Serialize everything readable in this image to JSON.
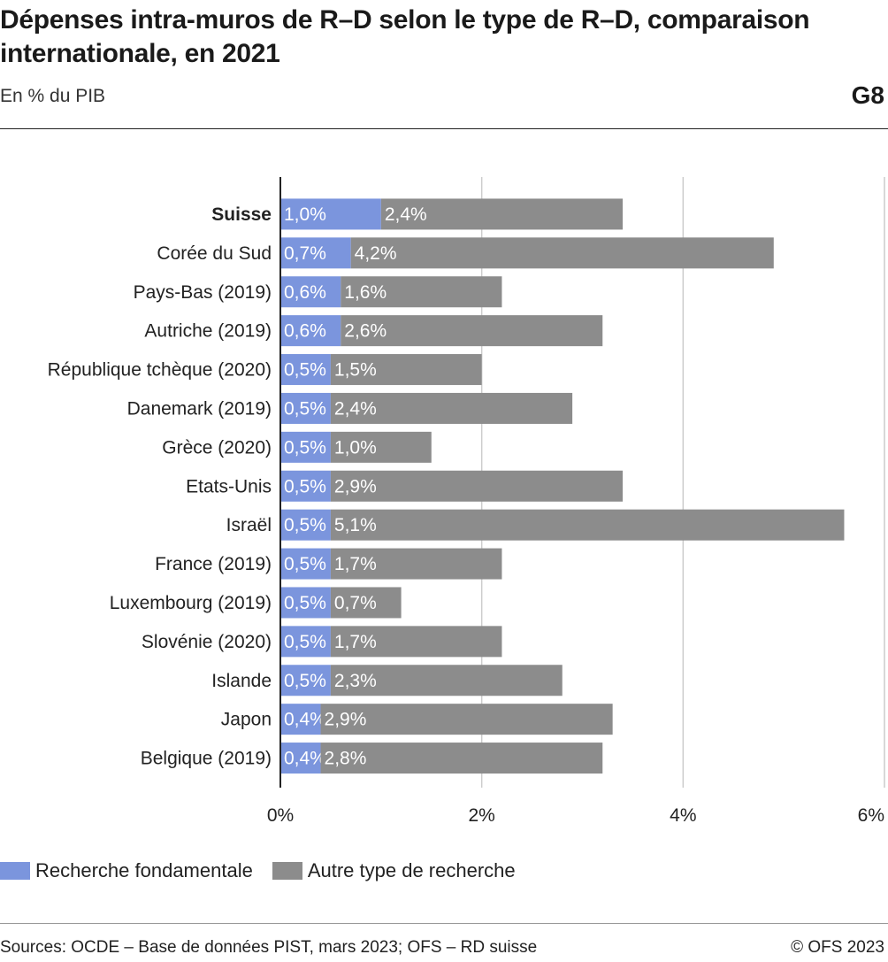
{
  "header": {
    "title": "Dépenses intra-muros de R–D selon le type de R–D, comparaison internationale, en 2021",
    "subtitle": "En % du PIB",
    "graph_number": "G8"
  },
  "footer": {
    "source": "Sources: OCDE – Base de données PIST, mars 2023; OFS – RD suisse",
    "copyright": "© OFS 2023"
  },
  "colors": {
    "fundamental": "#7b95dd",
    "other": "#8c8c8c",
    "grid": "#cccccc",
    "axis": "#222222"
  },
  "chart_data": {
    "type": "bar",
    "orientation": "horizontal",
    "stacked": true,
    "categories": [
      "Suisse",
      "Corée du Sud",
      "Pays-Bas (2019)",
      "Autriche (2019)",
      "République tchèque (2020)",
      "Danemark (2019)",
      "Grèce (2020)",
      "Etats-Unis",
      "Israël",
      "France (2019)",
      "Luxembourg (2019)",
      "Slovénie (2020)",
      "Islande",
      "Japon",
      "Belgique (2019)"
    ],
    "highlight_category": "Suisse",
    "series": [
      {
        "name": "Recherche fondamentale",
        "values": [
          1.0,
          0.7,
          0.6,
          0.6,
          0.5,
          0.5,
          0.5,
          0.5,
          0.5,
          0.5,
          0.5,
          0.5,
          0.5,
          0.4,
          0.4
        ],
        "labels": [
          "1,0%",
          "0,7%",
          "0,6%",
          "0,6%",
          "0,5%",
          "0,5%",
          "0,5%",
          "0,5%",
          "0,5%",
          "0,5%",
          "0,5%",
          "0,5%",
          "0,5%",
          "0,4%",
          "0,4%"
        ]
      },
      {
        "name": "Autre type de recherche",
        "values": [
          2.4,
          4.2,
          1.6,
          2.6,
          1.5,
          2.4,
          1.0,
          2.9,
          5.1,
          1.7,
          0.7,
          1.7,
          2.3,
          2.9,
          2.8
        ],
        "labels": [
          "2,4%",
          "4,2%",
          "1,6%",
          "2,6%",
          "1,5%",
          "2,4%",
          "1,0%",
          "2,9%",
          "5,1%",
          "1,7%",
          "0,7%",
          "1,7%",
          "2,3%",
          "2,9%",
          "2,8%"
        ]
      }
    ],
    "xlim": [
      0,
      6
    ],
    "x_ticks": [
      0,
      2,
      4,
      6
    ],
    "x_tick_labels": [
      "0%",
      "2%",
      "4%",
      "6%"
    ],
    "grid": true,
    "legend": "bottom-left"
  }
}
